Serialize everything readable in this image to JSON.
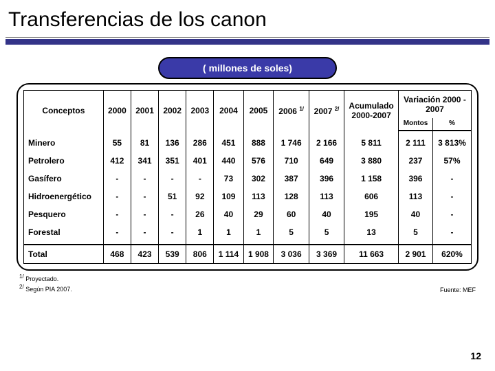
{
  "title": "Transferencias de los canon",
  "subtitle": "( millones de soles)",
  "page_number": "12",
  "footnotes": {
    "f1": "Proyectado.",
    "f2": "Según PIA 2007.",
    "source": "Fuente: MEF"
  },
  "table": {
    "columns_main": [
      "Conceptos",
      "2000",
      "2001",
      "2002",
      "2003",
      "2004",
      "2005",
      "2006",
      "2007",
      "Acumulado 2000-2007"
    ],
    "col_2006_sup": "1/",
    "col_2007_sup": "2/",
    "variation_header": "Variación 2000 - 2007",
    "variation_sub": [
      "Montos",
      "%"
    ],
    "rows": [
      {
        "label": "Minero",
        "v": [
          "55",
          "81",
          "136",
          "286",
          "451",
          "888",
          "1 746",
          "2 166",
          "5 811",
          "2 111",
          "3 813%"
        ]
      },
      {
        "label": "Petrolero",
        "v": [
          "412",
          "341",
          "351",
          "401",
          "440",
          "576",
          "710",
          "649",
          "3 880",
          "237",
          "57%"
        ]
      },
      {
        "label": "Gasífero",
        "v": [
          "-",
          "-",
          "-",
          "-",
          "73",
          "302",
          "387",
          "396",
          "1 158",
          "396",
          "-"
        ]
      },
      {
        "label": "Hidroenergético",
        "v": [
          "-",
          "-",
          "51",
          "92",
          "109",
          "113",
          "128",
          "113",
          "606",
          "113",
          "-"
        ]
      },
      {
        "label": "Pesquero",
        "v": [
          "-",
          "-",
          "-",
          "26",
          "40",
          "29",
          "60",
          "40",
          "195",
          "40",
          "-"
        ]
      },
      {
        "label": "Forestal",
        "v": [
          "-",
          "-",
          "-",
          "1",
          "1",
          "1",
          "5",
          "5",
          "13",
          "5",
          "-"
        ]
      }
    ],
    "total": {
      "label": "Total",
      "v": [
        "468",
        "423",
        "539",
        "806",
        "1 114",
        "1 908",
        "3 036",
        "3 369",
        "11 663",
        "2 901",
        "620%"
      ]
    }
  }
}
